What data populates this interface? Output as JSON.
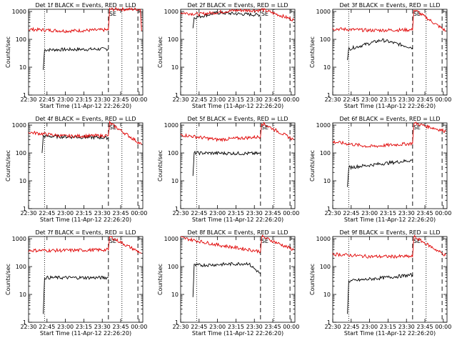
{
  "chart_data": [
    {
      "type": "line",
      "title": "Det 1f BLACK = Events, RED = LLD",
      "marker": "SE",
      "xlabel": "Start Time (11-Apr-12 22:26:20)",
      "ylabel": "Counts/sec",
      "xlim": [
        "22:30",
        "00:03"
      ],
      "ylim": [
        1,
        1200
      ],
      "y_scale": "log",
      "x_ticks": [
        "22:30",
        "22:45",
        "23:00",
        "23:15",
        "23:30",
        "23:45",
        "00:00"
      ],
      "y_ticks": [
        "1",
        "10",
        "100",
        "1000"
      ],
      "dotted_vlines": [
        "22:43",
        "23:46"
      ],
      "dashed_vlines": [
        "23:35",
        "23:59"
      ],
      "series": [
        {
          "name": "Events",
          "color": "#000000",
          "start": "22:42",
          "end": "23:35",
          "level": 45,
          "points": [
            {
              "x": "22:42",
              "y": 8
            },
            {
              "x": "22:43",
              "y": 42
            },
            {
              "x": "23:35",
              "y": 45
            }
          ]
        },
        {
          "name": "LLD",
          "color": "#e00000",
          "start": "22:30",
          "end": "23:36",
          "level": 210,
          "points": [
            {
              "x": "22:30",
              "y": 230
            },
            {
              "x": "23:00",
              "y": 200
            },
            {
              "x": "23:35",
              "y": 220
            },
            {
              "x": "23:36",
              "y": 1200
            },
            {
              "x": "00:01",
              "y": 1200
            },
            {
              "x": "00:02",
              "y": 200
            }
          ]
        }
      ]
    },
    {
      "type": "line",
      "title": "Det 2f BLACK = Events, RED = LLD",
      "marker": "SE",
      "xlabel": "Start Time (11-Apr-12 22:26:20)",
      "ylabel": "Counts/sec",
      "xlim": [
        "22:30",
        "00:03"
      ],
      "ylim": [
        1,
        1200
      ],
      "y_scale": "log",
      "x_ticks": [
        "22:30",
        "22:45",
        "23:00",
        "23:15",
        "23:30",
        "23:45",
        "00:00"
      ],
      "y_ticks": [
        "1",
        "10",
        "100",
        "1000"
      ],
      "dotted_vlines": [
        "22:43",
        "23:46"
      ],
      "dashed_vlines": [
        "23:35",
        "23:59"
      ],
      "series": [
        {
          "name": "Events",
          "color": "#000000",
          "start": "22:40",
          "end": "23:35",
          "level": 800,
          "points": [
            {
              "x": "22:40",
              "y": 250
            },
            {
              "x": "22:41",
              "y": 600
            },
            {
              "x": "23:00",
              "y": 900
            },
            {
              "x": "23:35",
              "y": 750
            }
          ]
        },
        {
          "name": "LLD",
          "color": "#e00000",
          "start": "22:30",
          "end": "23:36",
          "level": 1000,
          "points": [
            {
              "x": "22:30",
              "y": 900
            },
            {
              "x": "22:45",
              "y": 800
            },
            {
              "x": "23:15",
              "y": 1100
            },
            {
              "x": "23:35",
              "y": 1100
            },
            {
              "x": "23:36",
              "y": 1200
            },
            {
              "x": "00:02",
              "y": 500
            }
          ]
        }
      ]
    },
    {
      "type": "line",
      "title": "Det 3f BLACK = Events, RED = LLD",
      "marker": "SE",
      "xlabel": "Start Time (11-Apr-12 22:26:20)",
      "ylabel": "Counts/sec",
      "xlim": [
        "22:30",
        "00:03"
      ],
      "ylim": [
        1,
        1200
      ],
      "y_scale": "log",
      "x_ticks": [
        "22:30",
        "22:45",
        "23:00",
        "23:15",
        "23:30",
        "23:45",
        "00:00"
      ],
      "y_ticks": [
        "1",
        "10",
        "100",
        "1000"
      ],
      "dotted_vlines": [
        "22:43",
        "23:46"
      ],
      "dashed_vlines": [
        "23:35",
        "23:59"
      ],
      "series": [
        {
          "name": "Events",
          "color": "#000000",
          "start": "22:42",
          "end": "23:35",
          "level": 55,
          "points": [
            {
              "x": "22:42",
              "y": 18
            },
            {
              "x": "22:43",
              "y": 45
            },
            {
              "x": "23:10",
              "y": 95
            },
            {
              "x": "23:35",
              "y": 50
            }
          ]
        },
        {
          "name": "LLD",
          "color": "#e00000",
          "start": "22:30",
          "end": "23:36",
          "level": 220,
          "points": [
            {
              "x": "22:30",
              "y": 240
            },
            {
              "x": "23:00",
              "y": 210
            },
            {
              "x": "23:35",
              "y": 220
            },
            {
              "x": "23:36",
              "y": 1200
            },
            {
              "x": "00:02",
              "y": 200
            }
          ]
        }
      ]
    },
    {
      "type": "line",
      "title": "Det 4f BLACK = Events, RED = LLD",
      "marker": "SE",
      "xlabel": "Start Time (11-Apr-12 22:26:20)",
      "ylabel": "Counts/sec",
      "xlim": [
        "22:30",
        "00:03"
      ],
      "ylim": [
        1,
        1200
      ],
      "y_scale": "log",
      "x_ticks": [
        "22:30",
        "22:45",
        "23:00",
        "23:15",
        "23:30",
        "23:45",
        "00:00"
      ],
      "y_ticks": [
        "1",
        "10",
        "100",
        "1000"
      ],
      "dotted_vlines": [
        "22:43",
        "23:46"
      ],
      "dashed_vlines": [
        "23:35",
        "23:59"
      ],
      "series": [
        {
          "name": "Events",
          "color": "#000000",
          "start": "22:41",
          "end": "23:35",
          "level": 380,
          "points": [
            {
              "x": "22:41",
              "y": 100
            },
            {
              "x": "22:42",
              "y": 400
            },
            {
              "x": "23:35",
              "y": 350
            }
          ]
        },
        {
          "name": "LLD",
          "color": "#e00000",
          "start": "22:30",
          "end": "23:36",
          "level": 420,
          "points": [
            {
              "x": "22:30",
              "y": 550
            },
            {
              "x": "23:00",
              "y": 400
            },
            {
              "x": "23:35",
              "y": 420
            },
            {
              "x": "23:36",
              "y": 1200
            },
            {
              "x": "00:02",
              "y": 200
            }
          ]
        }
      ]
    },
    {
      "type": "line",
      "title": "Det 5f BLACK = Events, RED = LLD",
      "marker": "SE",
      "xlabel": "Start Time (11-Apr-12 22:26:20)",
      "ylabel": "Counts/sec",
      "xlim": [
        "22:30",
        "00:03"
      ],
      "ylim": [
        1,
        1200
      ],
      "y_scale": "log",
      "x_ticks": [
        "22:30",
        "22:45",
        "23:00",
        "23:15",
        "23:30",
        "23:45",
        "00:00"
      ],
      "y_ticks": [
        "1",
        "10",
        "100",
        "1000"
      ],
      "dotted_vlines": [
        "22:43",
        "23:46"
      ],
      "dashed_vlines": [
        "23:35",
        "23:59"
      ],
      "series": [
        {
          "name": "Events",
          "color": "#000000",
          "start": "22:40",
          "end": "23:35",
          "level": 100,
          "points": [
            {
              "x": "22:40",
              "y": 15
            },
            {
              "x": "22:41",
              "y": 100
            },
            {
              "x": "23:35",
              "y": 95
            }
          ]
        },
        {
          "name": "LLD",
          "color": "#e00000",
          "start": "22:30",
          "end": "23:36",
          "level": 320,
          "points": [
            {
              "x": "22:30",
              "y": 450
            },
            {
              "x": "23:00",
              "y": 300
            },
            {
              "x": "23:35",
              "y": 380
            },
            {
              "x": "23:36",
              "y": 1200
            },
            {
              "x": "00:02",
              "y": 300
            }
          ]
        }
      ]
    },
    {
      "type": "line",
      "title": "Det 6f BLACK = Events, RED = LLD",
      "marker": "SE",
      "xlabel": "Start Time (11-Apr-12 22:26:20)",
      "ylabel": "Counts/sec",
      "xlim": [
        "22:30",
        "00:03"
      ],
      "ylim": [
        1,
        1200
      ],
      "y_scale": "log",
      "x_ticks": [
        "22:30",
        "22:45",
        "23:00",
        "23:15",
        "23:30",
        "23:45",
        "00:00"
      ],
      "y_ticks": [
        "1",
        "10",
        "100",
        "1000"
      ],
      "dotted_vlines": [
        "22:43",
        "23:46"
      ],
      "dashed_vlines": [
        "23:35",
        "23:59"
      ],
      "series": [
        {
          "name": "Events",
          "color": "#000000",
          "start": "22:42",
          "end": "23:35",
          "level": 45,
          "points": [
            {
              "x": "22:42",
              "y": 6
            },
            {
              "x": "22:43",
              "y": 30
            },
            {
              "x": "23:35",
              "y": 55
            }
          ]
        },
        {
          "name": "LLD",
          "color": "#e00000",
          "start": "22:30",
          "end": "23:36",
          "level": 190,
          "points": [
            {
              "x": "22:30",
              "y": 250
            },
            {
              "x": "23:00",
              "y": 170
            },
            {
              "x": "23:35",
              "y": 220
            },
            {
              "x": "23:36",
              "y": 1200
            },
            {
              "x": "00:02",
              "y": 600
            }
          ]
        }
      ]
    },
    {
      "type": "line",
      "title": "Det 7f BLACK = Events, RED = LLD",
      "marker": "SE",
      "xlabel": "Start Time (11-Apr-12 22:26:20)",
      "ylabel": "Counts/sec",
      "xlim": [
        "22:30",
        "00:03"
      ],
      "ylim": [
        1,
        1200
      ],
      "y_scale": "log",
      "x_ticks": [
        "22:30",
        "22:45",
        "23:00",
        "23:15",
        "23:30",
        "23:45",
        "00:00"
      ],
      "y_ticks": [
        "1",
        "10",
        "100",
        "1000"
      ],
      "dotted_vlines": [
        "22:43",
        "23:46"
      ],
      "dashed_vlines": [
        "23:35",
        "23:59"
      ],
      "series": [
        {
          "name": "Events",
          "color": "#000000",
          "start": "22:42",
          "end": "23:35",
          "level": 40,
          "points": [
            {
              "x": "22:42",
              "y": 2
            },
            {
              "x": "22:43",
              "y": 40
            },
            {
              "x": "23:35",
              "y": 40
            }
          ]
        },
        {
          "name": "LLD",
          "color": "#e00000",
          "start": "22:30",
          "end": "23:36",
          "level": 380,
          "points": [
            {
              "x": "22:30",
              "y": 380
            },
            {
              "x": "23:00",
              "y": 380
            },
            {
              "x": "23:35",
              "y": 400
            },
            {
              "x": "23:36",
              "y": 1200
            },
            {
              "x": "00:02",
              "y": 300
            }
          ]
        }
      ]
    },
    {
      "type": "line",
      "title": "Det 8f BLACK = Events, RED = LLD",
      "marker": "SE",
      "xlabel": "Start Time (11-Apr-12 22:26:20)",
      "ylabel": "Counts/sec",
      "xlim": [
        "22:30",
        "00:03"
      ],
      "ylim": [
        1,
        1200
      ],
      "y_scale": "log",
      "x_ticks": [
        "22:30",
        "22:45",
        "23:00",
        "23:15",
        "23:30",
        "23:45",
        "00:00"
      ],
      "y_ticks": [
        "1",
        "10",
        "100",
        "1000"
      ],
      "dotted_vlines": [
        "22:43",
        "23:46"
      ],
      "dashed_vlines": [
        "23:35",
        "23:59"
      ],
      "series": [
        {
          "name": "Events",
          "color": "#000000",
          "start": "22:40",
          "end": "23:35",
          "level": 80,
          "points": [
            {
              "x": "22:40",
              "y": 8
            },
            {
              "x": "22:41",
              "y": 110
            },
            {
              "x": "23:25",
              "y": 130
            },
            {
              "x": "23:35",
              "y": 55
            }
          ]
        },
        {
          "name": "LLD",
          "color": "#e00000",
          "start": "22:30",
          "end": "23:36",
          "level": 550,
          "points": [
            {
              "x": "22:30",
              "y": 1100
            },
            {
              "x": "23:00",
              "y": 600
            },
            {
              "x": "23:35",
              "y": 350
            },
            {
              "x": "23:36",
              "y": 1200
            },
            {
              "x": "00:02",
              "y": 400
            }
          ]
        }
      ]
    },
    {
      "type": "line",
      "title": "Det 9f BLACK = Events, RED = LLD",
      "marker": "SE",
      "xlabel": "Start Time (11-Apr-12 22:26:20)",
      "ylabel": "Counts/sec",
      "xlim": [
        "22:30",
        "00:03"
      ],
      "ylim": [
        1,
        1200
      ],
      "y_scale": "log",
      "x_ticks": [
        "22:30",
        "22:45",
        "23:00",
        "23:15",
        "23:30",
        "23:45",
        "00:00"
      ],
      "y_ticks": [
        "1",
        "10",
        "100",
        "1000"
      ],
      "dotted_vlines": [
        "22:43",
        "23:46"
      ],
      "dashed_vlines": [
        "23:35",
        "23:59"
      ],
      "series": [
        {
          "name": "Events",
          "color": "#000000",
          "start": "22:42",
          "end": "23:35",
          "level": 40,
          "points": [
            {
              "x": "22:42",
              "y": 2
            },
            {
              "x": "22:43",
              "y": 30
            },
            {
              "x": "23:35",
              "y": 50
            }
          ]
        },
        {
          "name": "LLD",
          "color": "#e00000",
          "start": "22:30",
          "end": "23:36",
          "level": 230,
          "points": [
            {
              "x": "22:30",
              "y": 280
            },
            {
              "x": "23:00",
              "y": 230
            },
            {
              "x": "23:35",
              "y": 230
            },
            {
              "x": "23:36",
              "y": 1200
            },
            {
              "x": "00:02",
              "y": 250
            }
          ]
        }
      ]
    }
  ]
}
